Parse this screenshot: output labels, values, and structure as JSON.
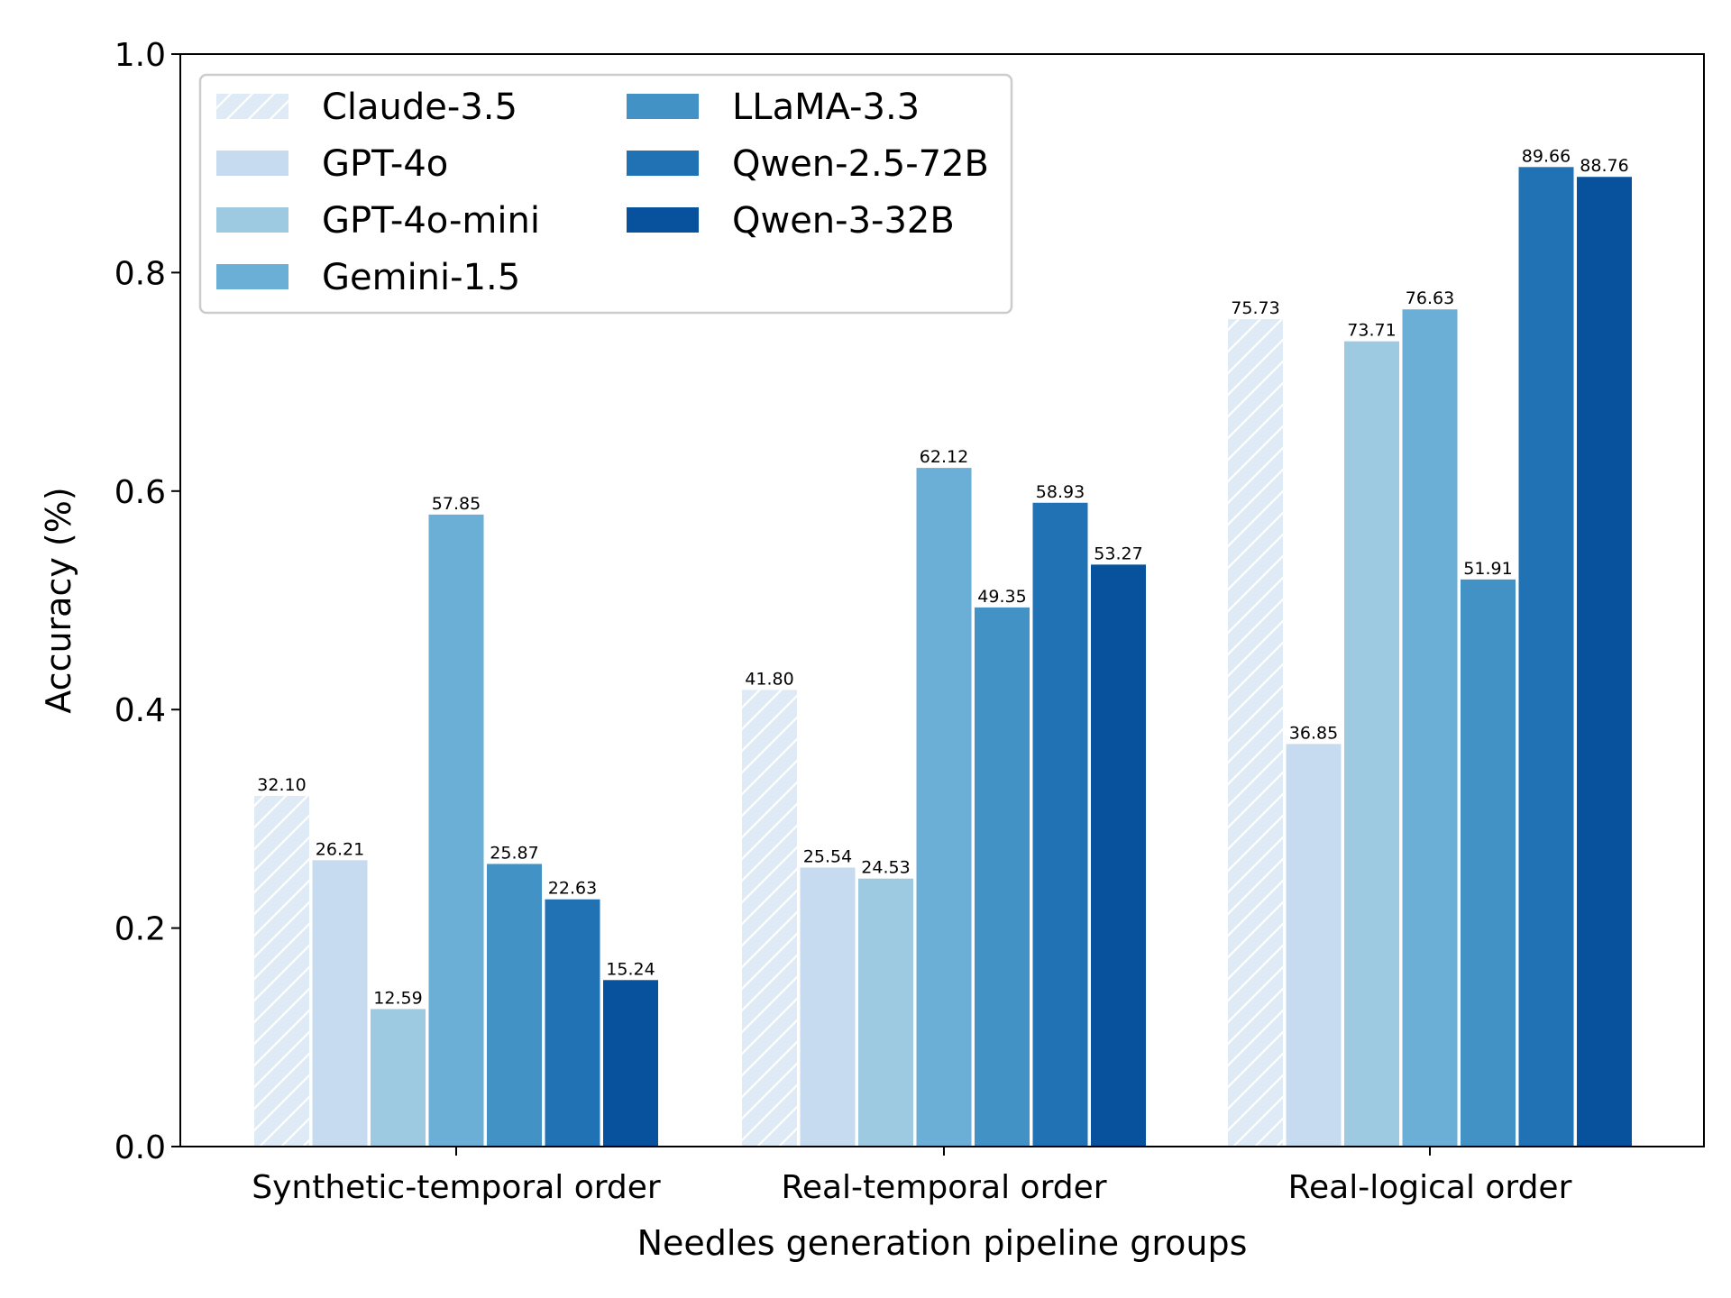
{
  "chart_data": {
    "type": "bar",
    "title": "",
    "xlabel": "Needles generation pipeline groups",
    "ylabel": "Accuracy (%)",
    "ylim": [
      0.0,
      1.0
    ],
    "yticks": [
      "0.0",
      "0.2",
      "0.4",
      "0.6",
      "0.8",
      "1.0"
    ],
    "grid": false,
    "legend_position": "top-left",
    "legend_columns": 2,
    "categories": [
      "Synthetic-temporal order",
      "Real-temporal order",
      "Real-logical order"
    ],
    "series": [
      {
        "name": "Claude-3.5",
        "color": "#deebf7",
        "hatch": true,
        "values": [
          0.321,
          0.418,
          0.7573
        ],
        "labels": [
          "32.10",
          "41.80",
          "75.73"
        ]
      },
      {
        "name": "GPT-4o",
        "color": "#c6dbef",
        "hatch": false,
        "values": [
          0.2621,
          0.2554,
          0.3685
        ],
        "labels": [
          "26.21",
          "25.54",
          "36.85"
        ]
      },
      {
        "name": "GPT-4o-mini",
        "color": "#9ecae1",
        "hatch": false,
        "values": [
          0.1259,
          0.2453,
          0.7371
        ],
        "labels": [
          "12.59",
          "24.53",
          "73.71"
        ]
      },
      {
        "name": "Gemini-1.5",
        "color": "#6baed6",
        "hatch": false,
        "values": [
          0.5785,
          0.6212,
          0.7663
        ],
        "labels": [
          "57.85",
          "62.12",
          "76.63"
        ]
      },
      {
        "name": "LLaMA-3.3",
        "color": "#4292c6",
        "hatch": false,
        "values": [
          0.2587,
          0.4935,
          0.5191
        ],
        "labels": [
          "25.87",
          "49.35",
          "51.91"
        ]
      },
      {
        "name": "Qwen-2.5-72B",
        "color": "#2171b5",
        "hatch": false,
        "values": [
          0.2263,
          0.5893,
          0.8966
        ],
        "labels": [
          "22.63",
          "58.93",
          "89.66"
        ]
      },
      {
        "name": "Qwen-3-32B",
        "color": "#08519c",
        "hatch": false,
        "values": [
          0.1524,
          0.5327,
          0.8876
        ],
        "labels": [
          "15.24",
          "53.27",
          "88.76"
        ]
      }
    ]
  }
}
